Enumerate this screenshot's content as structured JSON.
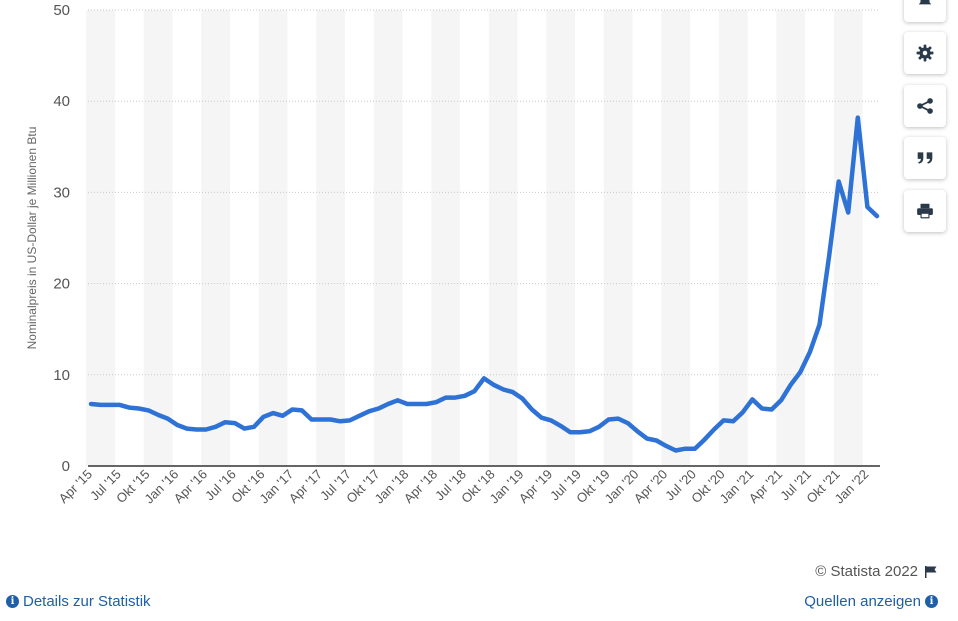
{
  "chart_data": {
    "type": "line",
    "ylabel": "Nominalpreis in US-Dollar je Millionen Btu",
    "ylim": [
      0,
      50
    ],
    "yticks": [
      0,
      10,
      20,
      30,
      40,
      50
    ],
    "grid": true,
    "tick_labels": [
      "Apr '15",
      "Jul '15",
      "Okt '15",
      "Jan '16",
      "Apr '16",
      "Jul '16",
      "Okt '16",
      "Jan '17",
      "Apr '17",
      "Jul '17",
      "Okt '17",
      "Jan '18",
      "Apr '18",
      "Jul '18",
      "Okt '18",
      "Jan '19",
      "Apr '19",
      "Jul '19",
      "Okt '19",
      "Jan '20",
      "Apr '20",
      "Jul '20",
      "Okt '20",
      "Jan '21",
      "Apr '21",
      "Jul '21",
      "Okt '21",
      "Jan '22"
    ],
    "series": [
      {
        "x": [
          "2015-04",
          "2015-05",
          "2015-06",
          "2015-07",
          "2015-08",
          "2015-09",
          "2015-10",
          "2015-11",
          "2015-12",
          "2016-01",
          "2016-02",
          "2016-03",
          "2016-04",
          "2016-05",
          "2016-06",
          "2016-07",
          "2016-08",
          "2016-09",
          "2016-10",
          "2016-11",
          "2016-12",
          "2017-01",
          "2017-02",
          "2017-03",
          "2017-04",
          "2017-05",
          "2017-06",
          "2017-07",
          "2017-08",
          "2017-09",
          "2017-10",
          "2017-11",
          "2017-12",
          "2018-01",
          "2018-02",
          "2018-03",
          "2018-04",
          "2018-05",
          "2018-06",
          "2018-07",
          "2018-08",
          "2018-09",
          "2018-10",
          "2018-11",
          "2018-12",
          "2019-01",
          "2019-02",
          "2019-03",
          "2019-04",
          "2019-05",
          "2019-06",
          "2019-07",
          "2019-08",
          "2019-09",
          "2019-10",
          "2019-11",
          "2019-12",
          "2020-01",
          "2020-02",
          "2020-03",
          "2020-04",
          "2020-05",
          "2020-06",
          "2020-07",
          "2020-08",
          "2020-09",
          "2020-10",
          "2020-11",
          "2020-12",
          "2021-01",
          "2021-02",
          "2021-03",
          "2021-04",
          "2021-05",
          "2021-06",
          "2021-07",
          "2021-08",
          "2021-09",
          "2021-10",
          "2021-11",
          "2021-12",
          "2022-01",
          "2022-02"
        ],
        "values": [
          6.8,
          6.7,
          6.7,
          6.7,
          6.4,
          6.3,
          6.1,
          5.6,
          5.2,
          4.5,
          4.1,
          4.0,
          4.0,
          4.3,
          4.8,
          4.7,
          4.1,
          4.3,
          5.4,
          5.8,
          5.5,
          6.2,
          6.1,
          5.1,
          5.1,
          5.1,
          4.9,
          5.0,
          5.5,
          6.0,
          6.3,
          6.8,
          7.2,
          6.8,
          6.8,
          6.8,
          7.0,
          7.5,
          7.5,
          7.7,
          8.2,
          9.6,
          8.9,
          8.4,
          8.1,
          7.4,
          6.2,
          5.3,
          5.0,
          4.4,
          3.7,
          3.7,
          3.8,
          4.3,
          5.1,
          5.2,
          4.7,
          3.8,
          3.0,
          2.8,
          2.2,
          1.7,
          1.9,
          1.9,
          2.9,
          4.0,
          5.0,
          4.9,
          5.9,
          7.3,
          6.3,
          6.2,
          7.2,
          8.9,
          10.3,
          12.5,
          15.5,
          23.0,
          31.2,
          27.8,
          38.2,
          28.4,
          27.4
        ]
      }
    ]
  },
  "toolbar": {
    "icons": [
      "bell-icon",
      "gear-icon",
      "share-icon",
      "quote-icon",
      "print-icon"
    ]
  },
  "footer": {
    "copyright": "© Statista 2022",
    "details_link": "Details zur Statistik",
    "sources_link": "Quellen anzeigen"
  },
  "colors": {
    "line": "#2f72d6",
    "band": "#f5f5f5",
    "link": "#1e5fa8"
  }
}
